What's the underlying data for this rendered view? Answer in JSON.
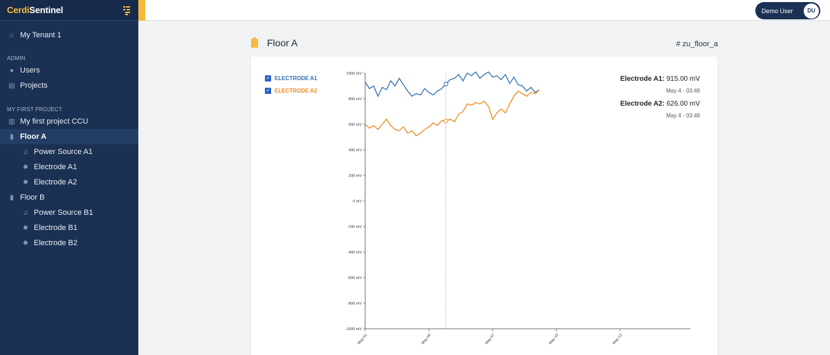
{
  "brand": {
    "part1": "Cerdi",
    "part2": "Sentinel"
  },
  "sidebar": {
    "tenant": "My Tenant 1",
    "admin_section": "ADMIN",
    "users": "Users",
    "projects": "Projects",
    "project_section": "MY FIRST PROJECT",
    "project_name": "My first project CCU",
    "floor_a": "Floor A",
    "floor_a_items": [
      "Power Source A1",
      "Electrode A1",
      "Electrode A2"
    ],
    "floor_b": "Floor B",
    "floor_b_items": [
      "Power Source B1",
      "Electrode B1",
      "Electrode B2"
    ]
  },
  "user": {
    "name": "Demo User",
    "initials": "DU"
  },
  "page": {
    "title": "Floor A",
    "tag": "# zu_floor_a"
  },
  "legend": [
    {
      "label": "ELECTRODE A1",
      "color": "#2f6fb3",
      "checked": true
    },
    {
      "label": "ELECTRODE A2",
      "color": "#f0891c",
      "checked": true
    }
  ],
  "tooltip": {
    "a1_label": "Electrode A1:",
    "a1_value": "915.00 mV",
    "a1_time": "May 4 - 03:49",
    "a2_label": "Electrode A2:",
    "a2_value": "626.00 mV",
    "a2_time": "May 4 - 03:49"
  },
  "chart_data": {
    "type": "line",
    "y_ticks": [
      "1000 mV",
      "800 mV",
      "600 mV",
      "400 mV",
      "200 mV",
      "0 mV",
      "-200 mV",
      "-400 mV",
      "-600 mV",
      "-800 mV",
      "-1000 mV"
    ],
    "x_ticks": [
      "May 01",
      "May 04",
      "May 07",
      "May 10",
      "May 13"
    ],
    "ylim": [
      -1000,
      1000
    ],
    "xlim_days": [
      0,
      15.3
    ],
    "cursor_x_day": 3.8,
    "series": [
      {
        "name": "ELECTRODE A1",
        "color": "#2f6fb3",
        "x": [
          0.0,
          0.2,
          0.4,
          0.6,
          0.8,
          1.0,
          1.2,
          1.4,
          1.6,
          1.8,
          2.0,
          2.2,
          2.4,
          2.6,
          2.8,
          3.0,
          3.2,
          3.4,
          3.6,
          3.8,
          4.0,
          4.2,
          4.4,
          4.6,
          4.8,
          5.0,
          5.2,
          5.4,
          5.6,
          5.8,
          6.0,
          6.2,
          6.4,
          6.6,
          6.8,
          7.0,
          7.2,
          7.4,
          7.6,
          7.8,
          8.0,
          8.2
        ],
        "y": [
          930,
          880,
          900,
          820,
          890,
          870,
          940,
          900,
          960,
          910,
          860,
          820,
          840,
          830,
          880,
          850,
          830,
          860,
          880,
          915,
          950,
          960,
          990,
          940,
          1000,
          980,
          1010,
          960,
          990,
          1010,
          970,
          980,
          950,
          990,
          920,
          970,
          910,
          900,
          860,
          890,
          850,
          870
        ]
      },
      {
        "name": "ELECTRODE A2",
        "color": "#f0891c",
        "x": [
          0.0,
          0.2,
          0.4,
          0.6,
          0.8,
          1.0,
          1.2,
          1.4,
          1.6,
          1.8,
          2.0,
          2.2,
          2.4,
          2.6,
          2.8,
          3.0,
          3.2,
          3.4,
          3.6,
          3.8,
          4.0,
          4.2,
          4.4,
          4.6,
          4.8,
          5.0,
          5.2,
          5.4,
          5.6,
          5.8,
          6.0,
          6.2,
          6.4,
          6.6,
          6.8,
          7.0,
          7.2,
          7.4,
          7.6,
          7.8,
          8.0,
          8.2
        ],
        "y": [
          600,
          570,
          590,
          560,
          600,
          640,
          590,
          560,
          550,
          580,
          530,
          550,
          510,
          530,
          560,
          580,
          610,
          590,
          630,
          626,
          640,
          620,
          680,
          700,
          760,
          750,
          770,
          760,
          780,
          740,
          640,
          690,
          720,
          690,
          760,
          820,
          860,
          840,
          820,
          850,
          840,
          870
        ]
      }
    ]
  }
}
